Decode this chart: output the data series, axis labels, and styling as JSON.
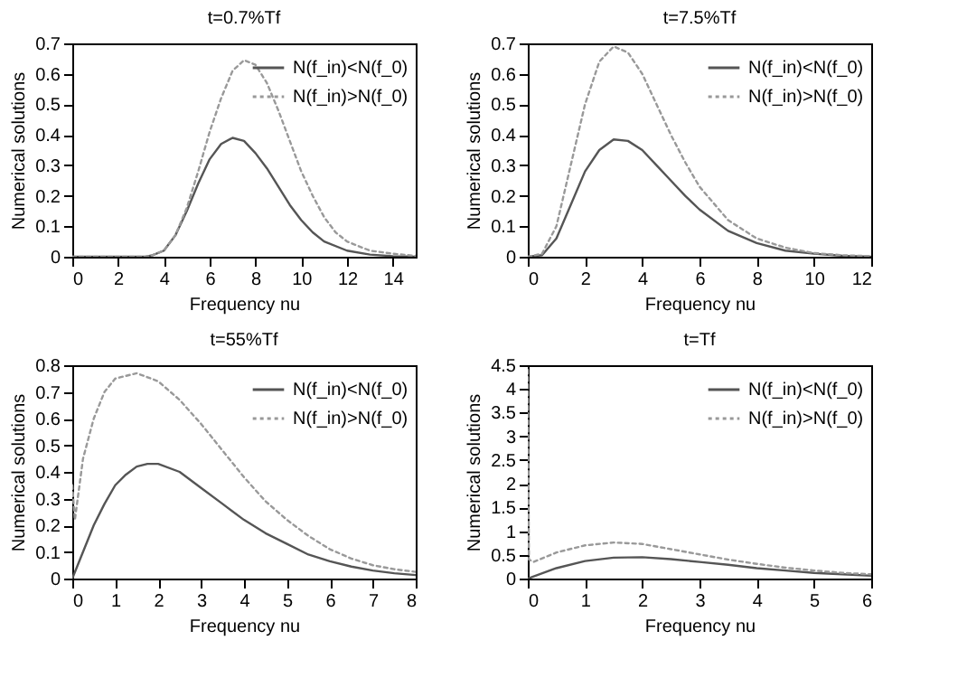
{
  "chart_data": [
    {
      "type": "line",
      "title": "t=0.7%Tf",
      "xlabel": "Frequency nu",
      "ylabel": "Numerical solutions",
      "xlim": [
        0,
        15
      ],
      "xticks": [
        0,
        2,
        4,
        6,
        8,
        10,
        12,
        14
      ],
      "ylim": [
        0,
        0.7
      ],
      "yticks": [
        0,
        0.1,
        0.2,
        0.3,
        0.4,
        0.5,
        0.6,
        0.7
      ],
      "grid": false,
      "legend": "top right",
      "series": [
        {
          "name": "N(f_in)<N(f_0)",
          "color": "#555555",
          "line_style": "solid",
          "x": [
            0,
            3.2,
            3.5,
            4,
            4.5,
            5,
            5.5,
            6,
            6.5,
            7,
            7.5,
            8,
            8.5,
            9,
            9.5,
            10,
            10.5,
            11,
            12,
            13,
            14,
            15
          ],
          "values": [
            0,
            0,
            0.005,
            0.02,
            0.07,
            0.15,
            0.24,
            0.32,
            0.37,
            0.39,
            0.38,
            0.34,
            0.29,
            0.23,
            0.17,
            0.12,
            0.08,
            0.05,
            0.02,
            0.007,
            0.002,
            0
          ]
        },
        {
          "name": "N(f_in)>N(f_0)",
          "color": "#999999",
          "line_style": "dotted",
          "x": [
            0,
            3.2,
            3.5,
            4,
            4.5,
            5,
            5.5,
            6,
            6.5,
            7,
            7.5,
            8,
            8.5,
            9,
            9.5,
            10,
            10.5,
            11,
            11.5,
            12,
            13,
            14,
            15
          ],
          "values": [
            0,
            0,
            0.005,
            0.02,
            0.07,
            0.16,
            0.28,
            0.41,
            0.52,
            0.61,
            0.645,
            0.63,
            0.57,
            0.48,
            0.38,
            0.28,
            0.2,
            0.13,
            0.08,
            0.05,
            0.02,
            0.01,
            0.003
          ]
        }
      ]
    },
    {
      "type": "line",
      "title": "t=7.5%Tf",
      "xlabel": "Frequency nu",
      "ylabel": "Numerical solutions",
      "xlim": [
        0,
        12
      ],
      "xticks": [
        0,
        2,
        4,
        6,
        8,
        10,
        12
      ],
      "ylim": [
        0,
        0.7
      ],
      "yticks": [
        0,
        0.1,
        0.2,
        0.3,
        0.4,
        0.5,
        0.6,
        0.7
      ],
      "grid": false,
      "legend": "top right",
      "series": [
        {
          "name": "N(f_in)<N(f_0)",
          "color": "#555555",
          "line_style": "solid",
          "x": [
            0,
            0.5,
            1,
            1.5,
            2,
            2.5,
            3,
            3.5,
            4,
            4.5,
            5,
            5.5,
            6,
            7,
            8,
            9,
            10,
            11,
            12
          ],
          "values": [
            0,
            0.005,
            0.06,
            0.17,
            0.28,
            0.35,
            0.385,
            0.38,
            0.35,
            0.3,
            0.25,
            0.2,
            0.155,
            0.085,
            0.045,
            0.02,
            0.01,
            0.003,
            0
          ]
        },
        {
          "name": "N(f_in)>N(f_0)",
          "color": "#999999",
          "line_style": "dotted",
          "x": [
            0,
            0.5,
            1,
            1.5,
            2,
            2.5,
            3,
            3.5,
            4,
            4.5,
            5,
            5.5,
            6,
            7,
            8,
            9,
            10,
            11,
            12
          ],
          "values": [
            0,
            0.01,
            0.1,
            0.3,
            0.5,
            0.64,
            0.69,
            0.67,
            0.6,
            0.5,
            0.4,
            0.31,
            0.23,
            0.12,
            0.06,
            0.03,
            0.012,
            0.005,
            0.002
          ]
        }
      ]
    },
    {
      "type": "line",
      "title": "t=55%Tf",
      "xlabel": "Frequency nu",
      "ylabel": "Numerical solutions",
      "xlim": [
        0,
        8
      ],
      "xticks": [
        0,
        1,
        2,
        3,
        4,
        5,
        6,
        7,
        8
      ],
      "ylim": [
        0,
        0.8
      ],
      "yticks": [
        0,
        0.1,
        0.2,
        0.3,
        0.4,
        0.5,
        0.6,
        0.7,
        0.8
      ],
      "grid": false,
      "legend": "top right",
      "series": [
        {
          "name": "N(f_in)<N(f_0)",
          "color": "#555555",
          "line_style": "solid",
          "x": [
            0,
            0.25,
            0.5,
            0.75,
            1,
            1.25,
            1.5,
            1.75,
            2,
            2.5,
            3,
            3.5,
            4,
            4.5,
            5,
            5.5,
            6,
            6.5,
            7,
            7.5,
            8
          ],
          "values": [
            0,
            0.1,
            0.2,
            0.28,
            0.35,
            0.39,
            0.42,
            0.43,
            0.43,
            0.4,
            0.34,
            0.28,
            0.22,
            0.17,
            0.13,
            0.09,
            0.065,
            0.045,
            0.03,
            0.02,
            0.013
          ]
        },
        {
          "name": "N(f_in)>N(f_0)",
          "color": "#999999",
          "line_style": "dotted",
          "x": [
            0,
            0.06,
            0.25,
            0.5,
            0.75,
            1,
            1.5,
            2,
            2.5,
            3,
            3.5,
            4,
            4.5,
            5,
            5.5,
            6,
            6.5,
            7,
            7.5,
            8
          ],
          "values": [
            0.35,
            0.22,
            0.45,
            0.6,
            0.7,
            0.75,
            0.77,
            0.74,
            0.67,
            0.58,
            0.48,
            0.38,
            0.29,
            0.22,
            0.16,
            0.11,
            0.075,
            0.05,
            0.035,
            0.025
          ]
        }
      ]
    },
    {
      "type": "line",
      "title": "t=Tf",
      "xlabel": "Frequency nu",
      "ylabel": "Numerical solutions",
      "xlim": [
        0,
        6
      ],
      "xticks": [
        0,
        1,
        2,
        3,
        4,
        5,
        6
      ],
      "ylim": [
        0,
        4.5
      ],
      "yticks": [
        0,
        0.5,
        1,
        1.5,
        2,
        2.5,
        3,
        3.5,
        4,
        4.5
      ],
      "grid": false,
      "legend": "top right",
      "series": [
        {
          "name": "N(f_in)<N(f_0)",
          "color": "#555555",
          "line_style": "solid",
          "x": [
            0,
            0.5,
            1,
            1.5,
            2,
            2.5,
            3,
            3.5,
            4,
            4.5,
            5,
            5.5,
            6
          ],
          "values": [
            0,
            0.22,
            0.37,
            0.44,
            0.45,
            0.41,
            0.35,
            0.29,
            0.22,
            0.17,
            0.12,
            0.09,
            0.06
          ]
        },
        {
          "name": "N(f_in)>N(f_0)",
          "color": "#999999",
          "line_style": "dotted",
          "x": [
            0,
            0.02,
            0.1,
            0.5,
            1,
            1.5,
            2,
            2.5,
            3,
            3.5,
            4,
            4.5,
            5,
            5.5,
            6
          ],
          "values": [
            4.4,
            0.4,
            0.35,
            0.55,
            0.7,
            0.76,
            0.73,
            0.62,
            0.51,
            0.4,
            0.31,
            0.23,
            0.17,
            0.12,
            0.09
          ]
        }
      ]
    }
  ]
}
